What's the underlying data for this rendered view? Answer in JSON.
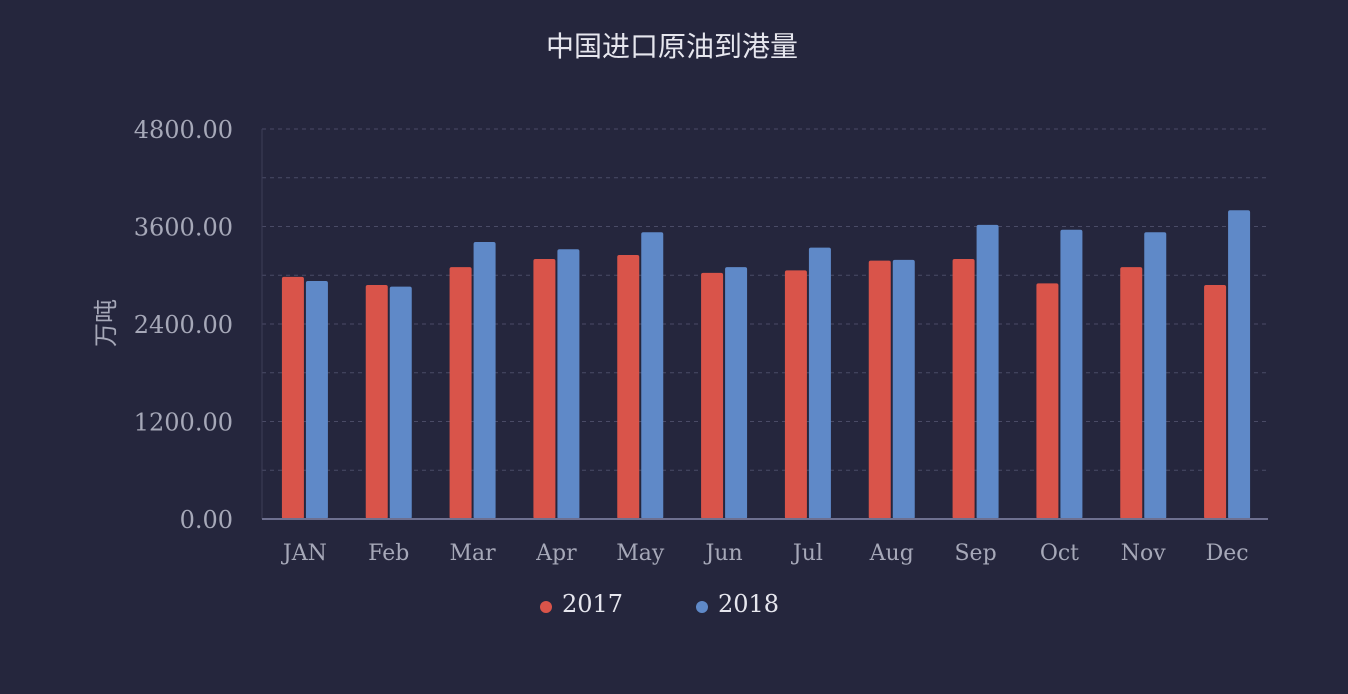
{
  "chart_data": {
    "type": "bar",
    "title": "中国进口原油到港量",
    "ylabel": "万吨",
    "xlabel": "",
    "ylim": [
      0,
      4800
    ],
    "yticks": [
      "0.00",
      "1200.00",
      "2400.00",
      "3600.00",
      "4800.00"
    ],
    "ytick_values": [
      0,
      1200,
      2400,
      3600,
      4800
    ],
    "grid": true,
    "legend_position": "bottom",
    "categories": [
      "JAN",
      "Feb",
      "Mar",
      "Apr",
      "May",
      "Jun",
      "Jul",
      "Aug",
      "Sep",
      "Oct",
      "Nov",
      "Dec"
    ],
    "series": [
      {
        "name": "2017",
        "color": "#d9544a",
        "values": [
          2980,
          2880,
          3100,
          3200,
          3250,
          3030,
          3060,
          3180,
          3200,
          2900,
          3100,
          2880
        ]
      },
      {
        "name": "2018",
        "color": "#5f89c8",
        "values": [
          2930,
          2860,
          3410,
          3320,
          3530,
          3100,
          3340,
          3190,
          3620,
          3560,
          3530,
          3800
        ]
      }
    ]
  }
}
